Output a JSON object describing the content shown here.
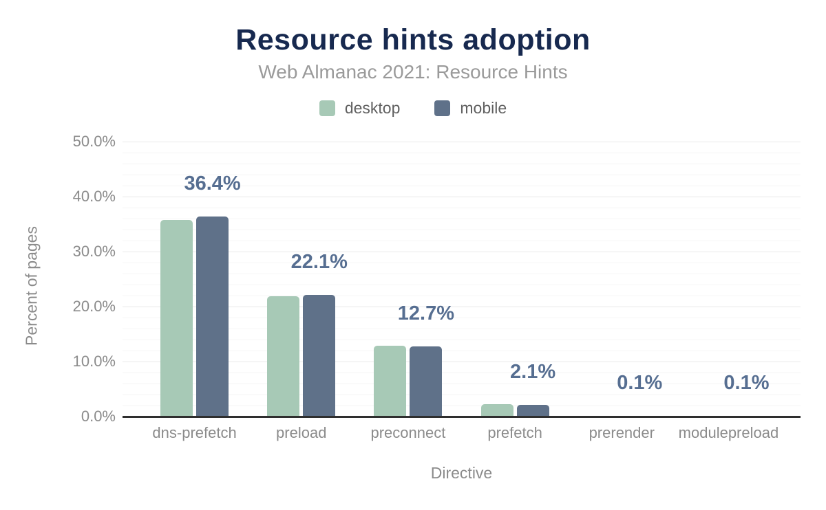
{
  "chart_data": {
    "type": "bar",
    "title": "Resource hints adoption",
    "subtitle": "Web Almanac 2021: Resource Hints",
    "xlabel": "Directive",
    "ylabel": "Percent of pages",
    "categories": [
      "dns-prefetch",
      "preload",
      "preconnect",
      "prefetch",
      "prerender",
      "modulepreload"
    ],
    "series": [
      {
        "name": "desktop",
        "color": "#a7c9b6",
        "values": [
          35.7,
          21.9,
          12.9,
          2.3,
          0.1,
          0.1
        ]
      },
      {
        "name": "mobile",
        "color": "#5f7189",
        "values": [
          36.4,
          22.1,
          12.7,
          2.1,
          0.1,
          0.1
        ]
      }
    ],
    "data_labels": [
      "36.4%",
      "22.1%",
      "12.7%",
      "2.1%",
      "0.1%",
      "0.1%"
    ],
    "data_label_series": "mobile",
    "y_ticks": [
      "50.0%",
      "40.0%",
      "30.0%",
      "20.0%",
      "10.0%",
      "0.0%"
    ],
    "ylim": [
      0,
      50
    ],
    "major_grid_step": 10,
    "minor_grid_step": 2,
    "grid": true,
    "legend_position": "top"
  },
  "colors": {
    "background": "#ffffff",
    "title": "#17294f",
    "subtitle": "#9a9a9a",
    "legend_text": "#606060",
    "axis_text": "#8b8b8b",
    "data_label": "#566e91",
    "axis_line": "#2f2f2f",
    "major_grid": "#e8e8e8",
    "minor_grid": "#f5f5f5",
    "desktop_bar": "#a7c9b6",
    "mobile_bar": "#5f7189"
  }
}
